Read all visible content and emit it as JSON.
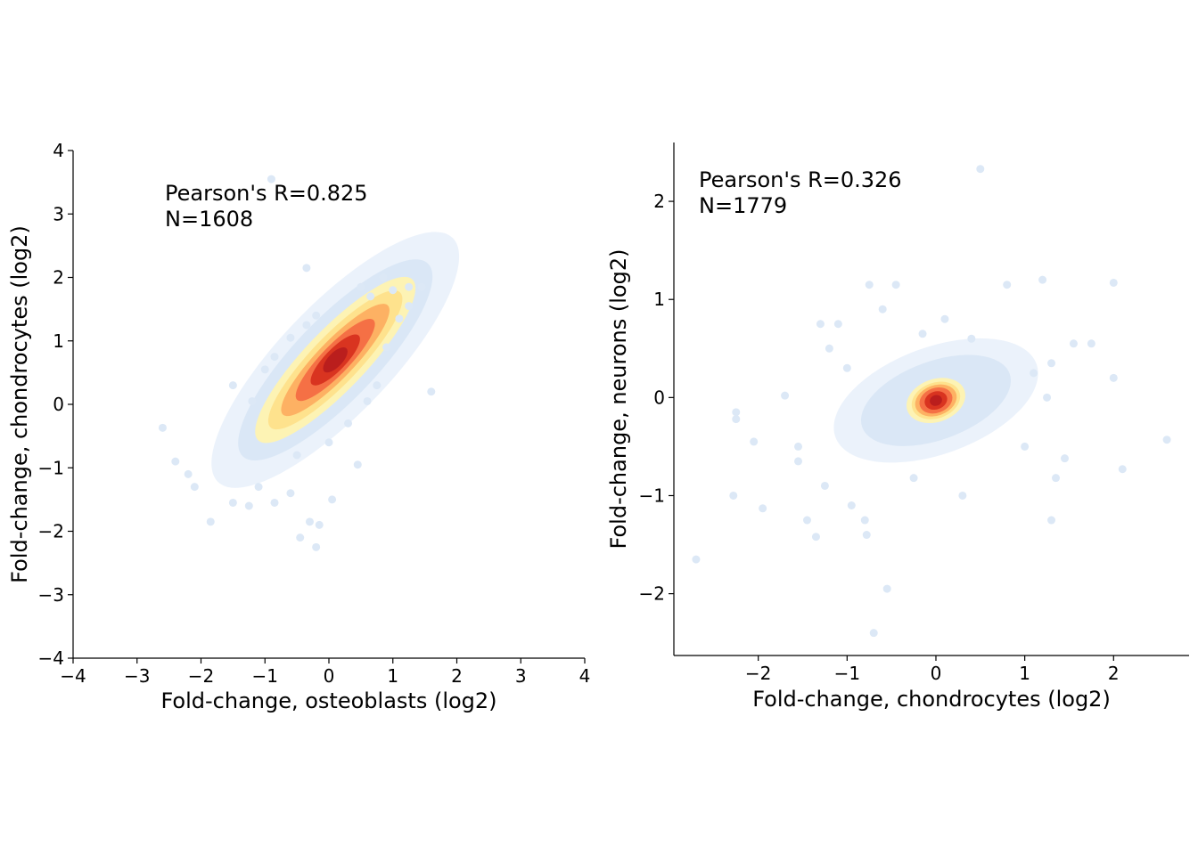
{
  "chart_data": [
    {
      "type": "scatter",
      "style": "hexbin density",
      "xlabel": "Fold-change, osteoblasts (log2)",
      "ylabel": "Fold-change, chondrocytes (log2)",
      "xlim": [
        -4,
        4
      ],
      "ylim": [
        -4,
        4
      ],
      "xticks": [
        -4,
        -3,
        -2,
        -1,
        0,
        1,
        2,
        3,
        4
      ],
      "yticks": [
        -4,
        -3,
        -2,
        -1,
        0,
        1,
        2,
        3,
        4
      ],
      "xtick_labels": [
        "−4",
        "−3",
        "−2",
        "−1",
        "0",
        "1",
        "2",
        "3",
        "4"
      ],
      "ytick_labels": [
        "−4",
        "−3",
        "−2",
        "−1",
        "0",
        "1",
        "2",
        "3",
        "4"
      ],
      "annotation": [
        "Pearson's R=0.825",
        "N=1608"
      ],
      "pearson_r": 0.825,
      "n": 1608,
      "grid": false,
      "spines": [
        "left",
        "bottom"
      ],
      "density_center": [
        0.1,
        0.7
      ],
      "density_trend": {
        "slope": 1.05,
        "intercept": 0.55
      },
      "points": [
        [
          -2.6,
          -0.37
        ],
        [
          -2.4,
          -0.9
        ],
        [
          -2.2,
          -1.1
        ],
        [
          -2.1,
          -1.3
        ],
        [
          -1.85,
          -1.85
        ],
        [
          -1.5,
          -1.55
        ],
        [
          -1.25,
          -1.6
        ],
        [
          -1.1,
          -1.3
        ],
        [
          -0.85,
          -1.55
        ],
        [
          -0.6,
          -1.4
        ],
        [
          -0.45,
          -2.1
        ],
        [
          -0.3,
          -1.85
        ],
        [
          -0.2,
          -2.25
        ],
        [
          -0.15,
          -1.9
        ],
        [
          0.05,
          -1.5
        ],
        [
          -1.5,
          0.3
        ],
        [
          -1.0,
          0.55
        ],
        [
          -0.85,
          0.75
        ],
        [
          -0.6,
          1.05
        ],
        [
          -0.35,
          1.25
        ],
        [
          -0.35,
          2.15
        ],
        [
          -0.9,
          3.55
        ],
        [
          0.5,
          1.85
        ],
        [
          0.65,
          1.7
        ],
        [
          0.85,
          2.0
        ],
        [
          1.0,
          1.8
        ],
        [
          1.25,
          1.85
        ],
        [
          1.45,
          1.85
        ],
        [
          1.25,
          1.55
        ],
        [
          1.1,
          1.35
        ],
        [
          1.6,
          0.2
        ],
        [
          0.9,
          0.9
        ],
        [
          0.75,
          0.3
        ],
        [
          0.6,
          0.05
        ],
        [
          0.3,
          -0.3
        ],
        [
          0.0,
          -0.6
        ],
        [
          -0.5,
          -0.8
        ],
        [
          -1.2,
          0.05
        ],
        [
          0.45,
          -0.95
        ],
        [
          -0.2,
          1.4
        ]
      ]
    },
    {
      "type": "scatter",
      "style": "hexbin density",
      "xlabel": "Fold-change, chondrocytes (log2)",
      "ylabel": "Fold-change, neurons (log2)",
      "xlim": [
        -2.95,
        2.85
      ],
      "ylim": [
        -2.63,
        2.6
      ],
      "xticks": [
        -2,
        -1,
        0,
        1,
        2
      ],
      "yticks": [
        -2,
        -1,
        0,
        1,
        2
      ],
      "xtick_labels": [
        "−2",
        "−1",
        "0",
        "1",
        "2"
      ],
      "ytick_labels": [
        "−2",
        "−1",
        "0",
        "1",
        "2"
      ],
      "annotation": [
        "Pearson's R=0.326",
        "N=1779"
      ],
      "pearson_r": 0.326,
      "n": 1779,
      "grid": false,
      "spines": [
        "left",
        "bottom"
      ],
      "density_center": [
        0.0,
        -0.03
      ],
      "density_trend": {
        "slope": 0.33,
        "intercept": -0.03
      },
      "points": [
        [
          -2.7,
          -1.65
        ],
        [
          -2.25,
          -0.15
        ],
        [
          -2.25,
          -0.22
        ],
        [
          -2.28,
          -1.0
        ],
        [
          -2.05,
          -0.45
        ],
        [
          -1.95,
          -1.13
        ],
        [
          -1.55,
          -0.5
        ],
        [
          -1.55,
          -0.65
        ],
        [
          -1.45,
          -1.25
        ],
        [
          -1.35,
          -1.42
        ],
        [
          -1.25,
          -0.9
        ],
        [
          -1.2,
          0.5
        ],
        [
          -1.3,
          0.75
        ],
        [
          -1.1,
          0.75
        ],
        [
          -1.0,
          0.3
        ],
        [
          -0.95,
          -1.1
        ],
        [
          -0.8,
          -1.25
        ],
        [
          -0.78,
          -1.4
        ],
        [
          -0.55,
          -1.95
        ],
        [
          -0.7,
          -2.4
        ],
        [
          -0.6,
          0.9
        ],
        [
          -0.45,
          1.15
        ],
        [
          -0.75,
          1.15
        ],
        [
          0.5,
          2.33
        ],
        [
          0.1,
          0.8
        ],
        [
          0.4,
          0.6
        ],
        [
          0.8,
          1.15
        ],
        [
          1.2,
          1.2
        ],
        [
          1.55,
          0.55
        ],
        [
          1.75,
          0.55
        ],
        [
          2.0,
          1.17
        ],
        [
          2.0,
          0.2
        ],
        [
          1.0,
          -0.5
        ],
        [
          1.3,
          -1.25
        ],
        [
          1.35,
          -0.82
        ],
        [
          1.45,
          -0.62
        ],
        [
          2.1,
          -0.73
        ],
        [
          2.6,
          -0.43
        ],
        [
          0.3,
          -1.0
        ],
        [
          -0.25,
          -0.82
        ],
        [
          1.1,
          0.25
        ],
        [
          1.25,
          0.0
        ],
        [
          -0.15,
          0.65
        ],
        [
          1.3,
          0.35
        ],
        [
          -1.7,
          0.02
        ]
      ]
    }
  ]
}
